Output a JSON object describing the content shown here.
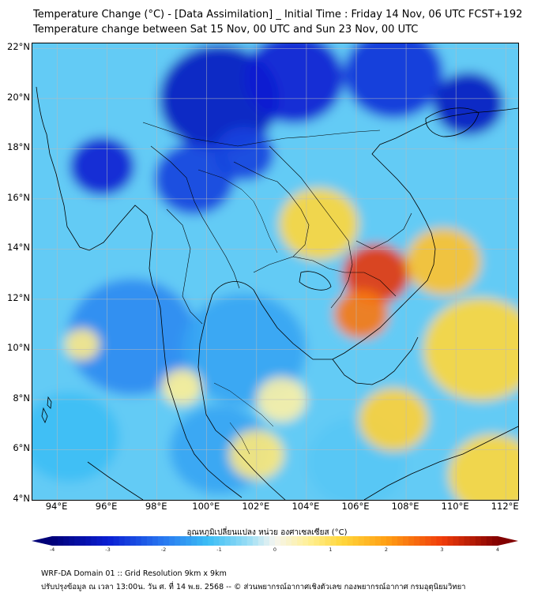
{
  "title": {
    "line1": "Temperature Change (°C) - [Data Assimilation] _ Initial Time : Friday 14 Nov, 06 UTC FCST+192",
    "line2": "Temperature change between Sat 15 Nov, 00 UTC and Sun 23 Nov, 00 UTC"
  },
  "map": {
    "lat_labels": [
      "22°N",
      "20°N",
      "18°N",
      "16°N",
      "14°N",
      "12°N",
      "10°N",
      "8°N",
      "6°N",
      "4°N"
    ],
    "lon_labels": [
      "94°E",
      "96°E",
      "98°E",
      "100°E",
      "102°E",
      "104°E",
      "106°E",
      "108°E",
      "110°E",
      "112°E"
    ],
    "lat_range": [
      4,
      22.2
    ],
    "lon_range": [
      93,
      112.5
    ],
    "field_blobs": [
      {
        "lon": 100.5,
        "lat": 20.0,
        "value": -3.2,
        "spread": 2.4
      },
      {
        "lon": 103.5,
        "lat": 20.8,
        "value": -3.0,
        "spread": 2.0
      },
      {
        "lon": 107.5,
        "lat": 21.0,
        "value": -2.8,
        "spread": 2.0
      },
      {
        "lon": 110.5,
        "lat": 19.8,
        "value": -3.2,
        "spread": 1.4
      },
      {
        "lon": 95.8,
        "lat": 17.3,
        "value": -3.0,
        "spread": 1.3
      },
      {
        "lon": 99.5,
        "lat": 16.8,
        "value": -2.6,
        "spread": 1.6
      },
      {
        "lon": 101.5,
        "lat": 17.8,
        "value": -2.6,
        "spread": 1.2
      },
      {
        "lon": 97.0,
        "lat": 10.5,
        "value": -1.8,
        "spread": 2.6
      },
      {
        "lon": 101.5,
        "lat": 10.0,
        "value": -1.5,
        "spread": 2.5
      },
      {
        "lon": 100.5,
        "lat": 6.0,
        "value": -1.5,
        "spread": 2.0
      },
      {
        "lon": 106.0,
        "lat": 5.5,
        "value": -1.0,
        "spread": 2.0
      },
      {
        "lon": 94.5,
        "lat": 6.5,
        "value": -1.2,
        "spread": 2.0
      },
      {
        "lon": 106.8,
        "lat": 13.0,
        "value": 3.1,
        "spread": 1.35
      },
      {
        "lon": 106.2,
        "lat": 11.4,
        "value": 2.4,
        "spread": 1.1
      },
      {
        "lon": 104.5,
        "lat": 15.0,
        "value": 1.2,
        "spread": 1.6
      },
      {
        "lon": 109.5,
        "lat": 13.5,
        "value": 1.5,
        "spread": 1.5
      },
      {
        "lon": 111.0,
        "lat": 10.0,
        "value": 1.2,
        "spread": 2.3
      },
      {
        "lon": 107.5,
        "lat": 7.2,
        "value": 1.3,
        "spread": 1.4
      },
      {
        "lon": 111.5,
        "lat": 5.0,
        "value": 1.2,
        "spread": 1.8
      },
      {
        "lon": 102.0,
        "lat": 5.8,
        "value": 0.8,
        "spread": 1.1
      },
      {
        "lon": 99.0,
        "lat": 8.5,
        "value": 0.6,
        "spread": 0.8
      },
      {
        "lon": 95.0,
        "lat": 10.2,
        "value": 0.7,
        "spread": 0.7
      },
      {
        "lon": 103.0,
        "lat": 8.0,
        "value": 0.5,
        "spread": 1.0
      }
    ]
  },
  "colorbar": {
    "label": "อุณหภูมิเปลี่ยนแปลง หน่วย องศาเซลเซียส (°C)",
    "ticks": [
      "-4",
      "-3",
      "-2",
      "-1",
      "0",
      "1",
      "2",
      "3",
      "4"
    ],
    "range": [
      -4,
      4
    ]
  },
  "footer": {
    "line1": "WRF-DA Domain 01 :: Grid Resolution 9km x 9km",
    "line2": "ปรับปรุงข้อมูล ณ เวลา 13:00น. วัน ศ. ที่ 14 พ.ย. 2568 -- © ส่วนพยากรณ์อากาศเชิงตัวเลข กองพยากรณ์อากาศ กรมอุตุนิยมวิทยา"
  },
  "colors": {
    "cold_extreme": "#00008b",
    "cold": "#1e90ff",
    "neutral": "#f5f5f0",
    "warm": "#ffd700",
    "hot": "#ff4500",
    "hot_extreme": "#8b0000",
    "coastline": "#000000",
    "grid": "#bbbbbb"
  }
}
